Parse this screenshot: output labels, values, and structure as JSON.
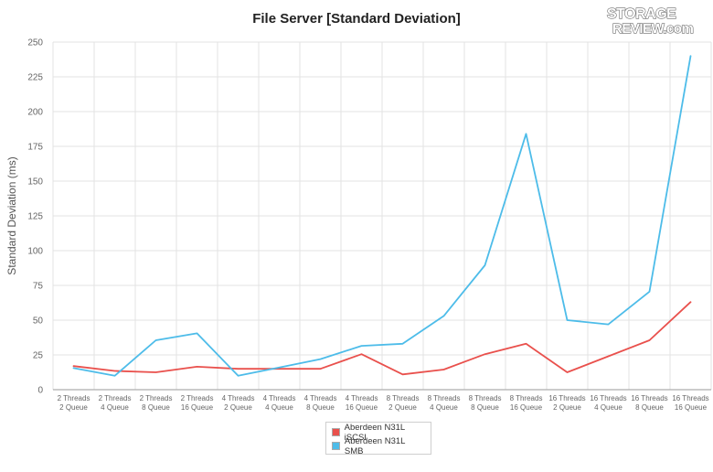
{
  "colors": {
    "iscsi": "#e9504c",
    "smb": "#4dbce9",
    "grid": "#e3e3e3",
    "axis": "#9a9a9a"
  },
  "logo": {
    "line1": "STORAGE",
    "line2": "REVIEW.com"
  },
  "chart_data": {
    "type": "line",
    "title": "File Server [Standard Deviation]",
    "ylabel": "Standard Deviation (ms)",
    "xlabel": "",
    "ylim": [
      0,
      250
    ],
    "yticks": [
      0,
      25,
      50,
      75,
      100,
      125,
      150,
      175,
      200,
      225,
      250
    ],
    "grid": true,
    "legend_position": "bottom-center",
    "categories": [
      [
        "2 Threads",
        "2 Queue"
      ],
      [
        "2 Threads",
        "4 Queue"
      ],
      [
        "2 Threads",
        "8 Queue"
      ],
      [
        "2 Threads",
        "16 Queue"
      ],
      [
        "4 Threads",
        "2 Queue"
      ],
      [
        "4 Threads",
        "4 Queue"
      ],
      [
        "4 Threads",
        "8 Queue"
      ],
      [
        "4 Threads",
        "16 Queue"
      ],
      [
        "8 Threads",
        "2 Queue"
      ],
      [
        "8 Threads",
        "4 Queue"
      ],
      [
        "8 Threads",
        "8 Queue"
      ],
      [
        "8 Threads",
        "16 Queue"
      ],
      [
        "16 Threads",
        "2 Queue"
      ],
      [
        "16 Threads",
        "4 Queue"
      ],
      [
        "16 Threads",
        "8 Queue"
      ],
      [
        "16 Threads",
        "16 Queue"
      ]
    ],
    "series": [
      {
        "name": "Aberdeen N31L iSCSI",
        "color": "#e9504c",
        "values": [
          17,
          13.5,
          12.5,
          16.5,
          15,
          15,
          15,
          25.5,
          11,
          14.5,
          25.5,
          33,
          12.5,
          24,
          35.5,
          63
        ]
      },
      {
        "name": "Aberdeen N31L SMB",
        "color": "#4dbce9",
        "values": [
          15.5,
          10,
          35.5,
          40.5,
          10,
          16,
          22,
          31.5,
          33,
          53,
          89.5,
          184,
          50,
          47,
          70.5,
          240
        ]
      }
    ]
  }
}
